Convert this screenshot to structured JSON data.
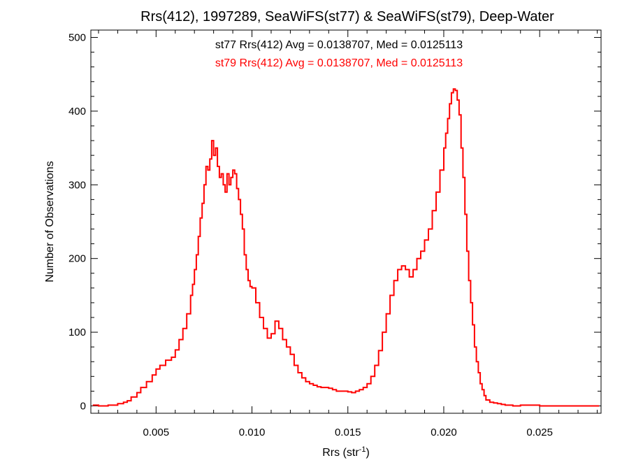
{
  "chart_data": {
    "type": "line",
    "title": "Rrs(412), 1997289, SeaWiFS(st77) & SeaWiFS(st79), Deep-Water",
    "xlabel": "Rrs (str",
    "xlabel_sup": "-1",
    "xlabel_suffix": ")",
    "ylabel": "Number of Observations",
    "xlim": [
      0.0016,
      0.0282
    ],
    "ylim": [
      -10,
      510
    ],
    "xticks": [
      0.005,
      0.01,
      0.015,
      0.02,
      0.025
    ],
    "xtick_labels": [
      "0.005",
      "0.010",
      "0.015",
      "0.020",
      "0.025"
    ],
    "yticks": [
      0,
      100,
      200,
      300,
      400,
      500
    ],
    "ytick_labels": [
      "0",
      "100",
      "200",
      "300",
      "400",
      "500"
    ],
    "grid": false,
    "legend": "none",
    "annotations": [
      {
        "text": "st77 Rrs(412) Avg = 0.0138707, Med = 0.0125113",
        "color": "#000000"
      },
      {
        "text": "st79 Rrs(412) Avg = 0.0138707, Med = 0.0125113",
        "color": "#ff0000"
      }
    ],
    "series": [
      {
        "color": "#ff0000",
        "step": true,
        "x": [
          0.0017,
          0.002,
          0.0025,
          0.003,
          0.0033,
          0.0035,
          0.0037,
          0.004,
          0.0042,
          0.0045,
          0.0048,
          0.005,
          0.0052,
          0.0055,
          0.0058,
          0.006,
          0.0062,
          0.0064,
          0.0066,
          0.0068,
          0.0069,
          0.007,
          0.0071,
          0.0072,
          0.0073,
          0.0074,
          0.0075,
          0.0076,
          0.0077,
          0.0078,
          0.0079,
          0.008,
          0.0081,
          0.0082,
          0.0083,
          0.0084,
          0.0085,
          0.0086,
          0.0087,
          0.0088,
          0.0089,
          0.009,
          0.0091,
          0.0092,
          0.0093,
          0.0094,
          0.0095,
          0.0096,
          0.0097,
          0.0098,
          0.0099,
          0.01,
          0.0102,
          0.0104,
          0.0106,
          0.0108,
          0.011,
          0.0112,
          0.0114,
          0.0116,
          0.0118,
          0.012,
          0.0122,
          0.0124,
          0.0126,
          0.0128,
          0.013,
          0.0132,
          0.0134,
          0.0136,
          0.0138,
          0.014,
          0.0142,
          0.0144,
          0.0146,
          0.0148,
          0.015,
          0.0152,
          0.0154,
          0.0156,
          0.0158,
          0.016,
          0.0162,
          0.0164,
          0.0166,
          0.0168,
          0.017,
          0.0172,
          0.0174,
          0.0176,
          0.0178,
          0.018,
          0.0182,
          0.0184,
          0.0186,
          0.0188,
          0.019,
          0.0192,
          0.0194,
          0.0196,
          0.0198,
          0.02,
          0.0201,
          0.0202,
          0.0203,
          0.0204,
          0.0205,
          0.0206,
          0.0207,
          0.0208,
          0.0209,
          0.021,
          0.0211,
          0.0212,
          0.0213,
          0.0214,
          0.0215,
          0.0216,
          0.0217,
          0.0218,
          0.0219,
          0.022,
          0.0221,
          0.0222,
          0.0224,
          0.0226,
          0.0228,
          0.023,
          0.0232,
          0.0234,
          0.0236,
          0.024,
          0.025,
          0.026,
          0.027,
          0.0281
        ],
        "y": [
          1,
          0,
          1,
          3,
          5,
          7,
          12,
          18,
          25,
          33,
          42,
          50,
          55,
          62,
          66,
          76,
          90,
          105,
          125,
          150,
          165,
          185,
          205,
          230,
          255,
          275,
          300,
          325,
          320,
          335,
          360,
          340,
          350,
          325,
          310,
          315,
          300,
          290,
          315,
          300,
          310,
          320,
          315,
          295,
          280,
          260,
          240,
          205,
          185,
          170,
          162,
          160,
          140,
          120,
          105,
          92,
          98,
          115,
          105,
          90,
          80,
          70,
          55,
          45,
          38,
          33,
          30,
          28,
          26,
          25,
          25,
          24,
          22,
          20,
          20,
          20,
          19,
          18,
          20,
          22,
          25,
          30,
          40,
          55,
          75,
          100,
          125,
          150,
          170,
          185,
          190,
          185,
          175,
          185,
          200,
          210,
          225,
          240,
          265,
          290,
          320,
          350,
          370,
          390,
          410,
          425,
          430,
          428,
          415,
          395,
          350,
          310,
          260,
          210,
          170,
          140,
          110,
          80,
          60,
          45,
          30,
          22,
          14,
          8,
          5,
          4,
          3,
          2,
          1,
          1,
          0,
          1,
          0,
          0,
          0,
          0
        ]
      }
    ]
  }
}
